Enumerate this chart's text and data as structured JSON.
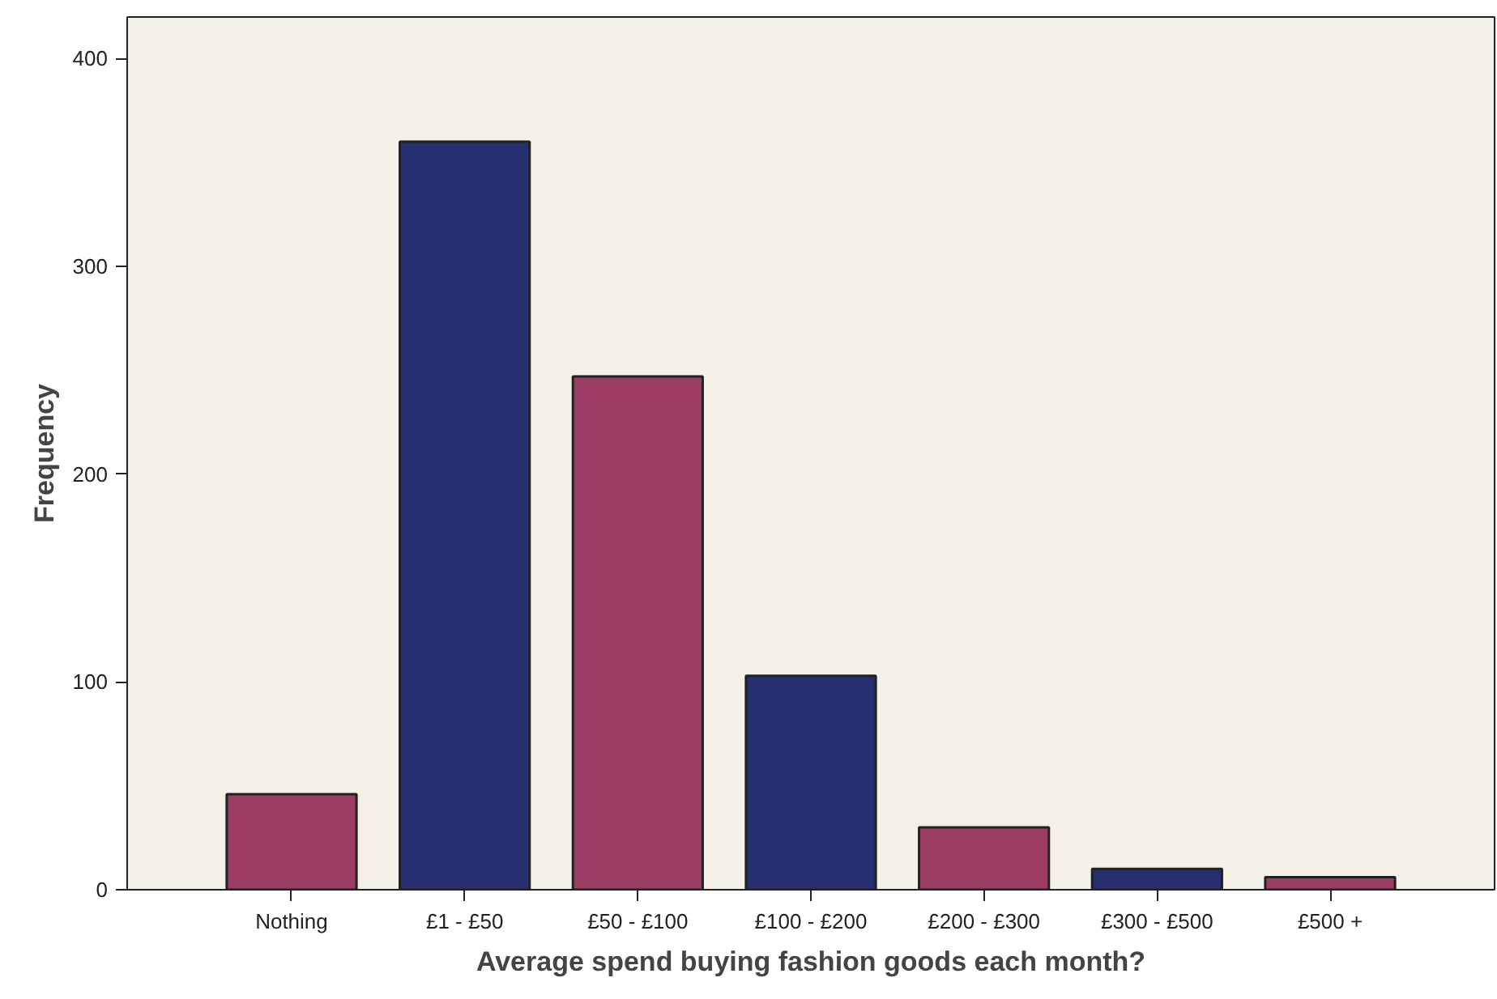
{
  "chart_data": {
    "type": "bar",
    "xlabel": "Average spend buying fashion goods each month?",
    "ylabel": "Frequency",
    "categories": [
      "Nothing",
      "£1 - £50",
      "£50 - £100",
      "£100 - £200",
      "£200 - £300",
      "£300 - £500",
      "£500 +"
    ],
    "values": [
      46,
      360,
      247,
      103,
      30,
      10,
      6
    ],
    "colors": [
      "#9c3d64",
      "#27306e",
      "#9c3d64",
      "#27306e",
      "#9c3d64",
      "#27306e",
      "#9c3d64"
    ],
    "ylim": [
      0,
      420
    ],
    "yticks": [
      0,
      100,
      200,
      300,
      400
    ],
    "grid": false
  }
}
